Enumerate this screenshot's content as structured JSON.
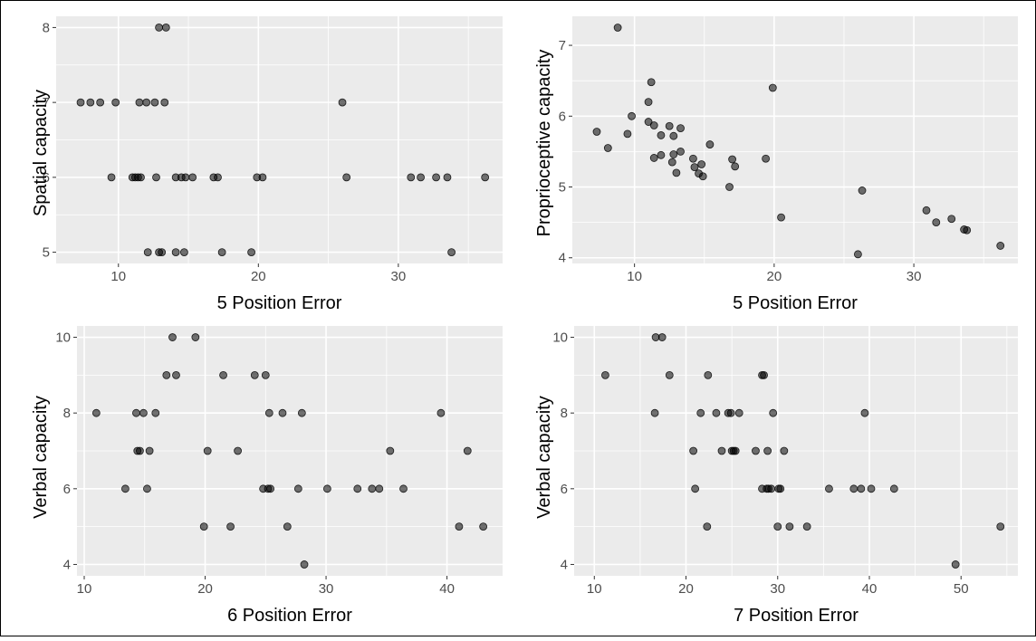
{
  "chart_data": [
    {
      "type": "scatter",
      "xlabel": "5 Position Error",
      "ylabel": "Spatial capacity",
      "xlim": [
        5.55,
        37.45
      ],
      "ylim": [
        4.85,
        8.15
      ],
      "xticks": [
        10,
        20,
        30
      ],
      "yticks": [
        5,
        6,
        7,
        8
      ],
      "grid": true,
      "points": [
        [
          7.3,
          7
        ],
        [
          8.0,
          7
        ],
        [
          8.7,
          7
        ],
        [
          9.8,
          7
        ],
        [
          11.5,
          7
        ],
        [
          12.0,
          7
        ],
        [
          12.6,
          7
        ],
        [
          13.3,
          7
        ],
        [
          26.0,
          7
        ],
        [
          12.9,
          8
        ],
        [
          13.4,
          8
        ],
        [
          9.5,
          6
        ],
        [
          11.0,
          6
        ],
        [
          11.2,
          6
        ],
        [
          11.4,
          6
        ],
        [
          11.6,
          6
        ],
        [
          12.7,
          6
        ],
        [
          14.1,
          6
        ],
        [
          14.5,
          6
        ],
        [
          14.8,
          6
        ],
        [
          15.3,
          6
        ],
        [
          16.8,
          6
        ],
        [
          17.1,
          6
        ],
        [
          19.9,
          6
        ],
        [
          20.3,
          6
        ],
        [
          26.3,
          6
        ],
        [
          30.9,
          6
        ],
        [
          31.6,
          6
        ],
        [
          32.7,
          6
        ],
        [
          33.5,
          6
        ],
        [
          36.2,
          6
        ],
        [
          12.1,
          5
        ],
        [
          12.9,
          5
        ],
        [
          13.1,
          5
        ],
        [
          14.1,
          5
        ],
        [
          14.7,
          5
        ],
        [
          17.4,
          5
        ],
        [
          19.5,
          5
        ],
        [
          33.8,
          5
        ]
      ]
    },
    {
      "type": "scatter",
      "xlabel": "5 Position Error",
      "ylabel": "Proprioceptive capacity",
      "xlim": [
        5.55,
        37.45
      ],
      "ylim": [
        3.92,
        7.41
      ],
      "xticks": [
        10,
        20,
        30
      ],
      "yticks": [
        4,
        5,
        6,
        7
      ],
      "grid": true,
      "points": [
        [
          8.8,
          7.25
        ],
        [
          11.2,
          6.48
        ],
        [
          19.9,
          6.4
        ],
        [
          11.0,
          6.2
        ],
        [
          9.8,
          6.0
        ],
        [
          11.0,
          5.92
        ],
        [
          11.4,
          5.87
        ],
        [
          12.5,
          5.86
        ],
        [
          13.3,
          5.83
        ],
        [
          7.3,
          5.78
        ],
        [
          9.5,
          5.75
        ],
        [
          11.9,
          5.73
        ],
        [
          12.8,
          5.72
        ],
        [
          15.4,
          5.6
        ],
        [
          8.1,
          5.55
        ],
        [
          13.3,
          5.5
        ],
        [
          12.8,
          5.46
        ],
        [
          11.9,
          5.45
        ],
        [
          11.4,
          5.41
        ],
        [
          14.2,
          5.4
        ],
        [
          17.0,
          5.39
        ],
        [
          19.4,
          5.4
        ],
        [
          12.7,
          5.35
        ],
        [
          14.8,
          5.32
        ],
        [
          14.3,
          5.28
        ],
        [
          17.2,
          5.29
        ],
        [
          13.0,
          5.2
        ],
        [
          14.6,
          5.19
        ],
        [
          14.9,
          5.15
        ],
        [
          16.8,
          5.0
        ],
        [
          26.3,
          4.95
        ],
        [
          30.9,
          4.67
        ],
        [
          20.5,
          4.57
        ],
        [
          32.7,
          4.55
        ],
        [
          31.6,
          4.5
        ],
        [
          33.6,
          4.4
        ],
        [
          33.8,
          4.39
        ],
        [
          36.2,
          4.17
        ],
        [
          26.0,
          4.05
        ]
      ]
    },
    {
      "type": "scatter",
      "xlabel": "6 Position Error",
      "ylabel": "Verbal capacity",
      "xlim": [
        9.4,
        44.6
      ],
      "ylim": [
        3.7,
        10.3
      ],
      "xticks": [
        10,
        20,
        30,
        40
      ],
      "yticks": [
        4,
        6,
        8,
        10
      ],
      "grid": true,
      "points": [
        [
          17.3,
          10
        ],
        [
          19.2,
          10
        ],
        [
          16.8,
          9
        ],
        [
          17.6,
          9
        ],
        [
          21.5,
          9
        ],
        [
          24.1,
          9
        ],
        [
          25.0,
          9
        ],
        [
          11.0,
          8
        ],
        [
          14.3,
          8
        ],
        [
          14.9,
          8
        ],
        [
          15.9,
          8
        ],
        [
          25.3,
          8
        ],
        [
          26.4,
          8
        ],
        [
          28.0,
          8
        ],
        [
          39.5,
          8
        ],
        [
          14.4,
          7
        ],
        [
          14.6,
          7
        ],
        [
          15.4,
          7
        ],
        [
          20.2,
          7
        ],
        [
          22.7,
          7
        ],
        [
          35.3,
          7
        ],
        [
          41.7,
          7
        ],
        [
          13.4,
          6
        ],
        [
          15.2,
          6
        ],
        [
          24.8,
          6
        ],
        [
          25.2,
          6
        ],
        [
          25.4,
          6
        ],
        [
          27.7,
          6
        ],
        [
          30.1,
          6
        ],
        [
          32.6,
          6
        ],
        [
          33.8,
          6
        ],
        [
          34.4,
          6
        ],
        [
          36.4,
          6
        ],
        [
          19.9,
          5
        ],
        [
          22.1,
          5
        ],
        [
          26.8,
          5
        ],
        [
          41.0,
          5
        ],
        [
          43.0,
          5
        ],
        [
          28.2,
          4
        ]
      ]
    },
    {
      "type": "scatter",
      "xlabel": "7 Position Error",
      "ylabel": "Verbal capacity",
      "xlim": [
        7.8,
        56.2
      ],
      "ylim": [
        3.7,
        10.3
      ],
      "xticks": [
        10,
        20,
        30,
        40,
        50
      ],
      "yticks": [
        4,
        6,
        8,
        10
      ],
      "grid": true,
      "points": [
        [
          16.7,
          10
        ],
        [
          17.4,
          10
        ],
        [
          11.2,
          9
        ],
        [
          18.2,
          9
        ],
        [
          22.4,
          9
        ],
        [
          28.3,
          9
        ],
        [
          28.5,
          9
        ],
        [
          16.6,
          8
        ],
        [
          21.6,
          8
        ],
        [
          23.3,
          8
        ],
        [
          24.6,
          8
        ],
        [
          24.9,
          8
        ],
        [
          25.8,
          8
        ],
        [
          29.5,
          8
        ],
        [
          39.5,
          8
        ],
        [
          20.8,
          7
        ],
        [
          23.9,
          7
        ],
        [
          25.0,
          7
        ],
        [
          25.2,
          7
        ],
        [
          25.4,
          7
        ],
        [
          27.6,
          7
        ],
        [
          28.9,
          7
        ],
        [
          30.7,
          7
        ],
        [
          21.0,
          6
        ],
        [
          28.3,
          6
        ],
        [
          28.8,
          6
        ],
        [
          29.0,
          6
        ],
        [
          29.3,
          6
        ],
        [
          30.1,
          6
        ],
        [
          30.3,
          6
        ],
        [
          35.6,
          6
        ],
        [
          38.3,
          6
        ],
        [
          39.1,
          6
        ],
        [
          40.2,
          6
        ],
        [
          42.7,
          6
        ],
        [
          22.3,
          5
        ],
        [
          30.0,
          5
        ],
        [
          31.3,
          5
        ],
        [
          33.2,
          5
        ],
        [
          54.3,
          5
        ],
        [
          49.4,
          4
        ]
      ]
    }
  ]
}
